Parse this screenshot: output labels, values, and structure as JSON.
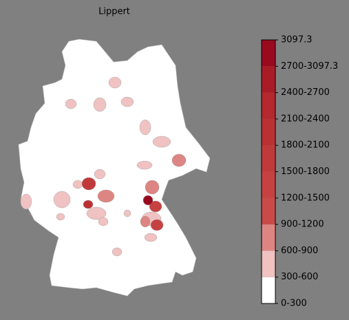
{
  "title": "Lippert",
  "legend": {
    "top_label": "3097.3",
    "bins": [
      {
        "label": "0-300",
        "color": "#ffffff"
      },
      {
        "label": "300-600",
        "color": "#f0c2c2"
      },
      {
        "label": "600-900",
        "color": "#dd8582"
      },
      {
        "label": "900-1200",
        "color": "#c94a48"
      },
      {
        "label": "1200-1500",
        "color": "#c64242"
      },
      {
        "label": "1500-1800",
        "color": "#c13a3b"
      },
      {
        "label": "1800-2100",
        "color": "#bb3133"
      },
      {
        "label": "2100-2400",
        "color": "#b4282e"
      },
      {
        "label": "2400-2700",
        "color": "#a91c27"
      },
      {
        "label": "2700-3097.3",
        "color": "#9a0a1f"
      }
    ]
  }
}
